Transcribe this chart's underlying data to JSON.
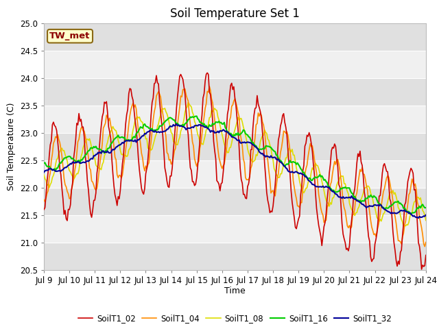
{
  "title": "Soil Temperature Set 1",
  "xlabel": "Time",
  "ylabel": "Soil Temperature (C)",
  "ylim": [
    20.5,
    25.0
  ],
  "yticks": [
    20.5,
    21.0,
    21.5,
    22.0,
    22.5,
    23.0,
    23.5,
    24.0,
    24.5,
    25.0
  ],
  "xtick_labels": [
    "Jul 9",
    "Jul 10",
    "Jul 11",
    "Jul 12",
    "Jul 13",
    "Jul 14",
    "Jul 15",
    "Jul 16",
    "Jul 17",
    "Jul 18",
    "Jul 19",
    "Jul 20",
    "Jul 21",
    "Jul 22",
    "Jul 23",
    "Jul 24"
  ],
  "annotation_text": "TW_met",
  "annotation_color": "#8B0000",
  "annotation_bg": "#FFFFCC",
  "annotation_border": "#8B6914",
  "colors": {
    "SoilT1_02": "#CC0000",
    "SoilT1_04": "#FF8C00",
    "SoilT1_08": "#DDDD00",
    "SoilT1_16": "#00CC00",
    "SoilT1_32": "#000099"
  },
  "title_fontsize": 12,
  "axis_fontsize": 9,
  "tick_fontsize": 8.5
}
